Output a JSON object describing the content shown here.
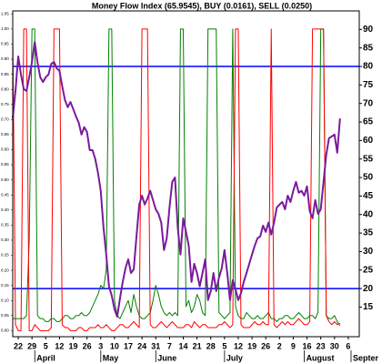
{
  "chart_data": {
    "type": "line",
    "title": "Money Flow Index (65.9545), BUY (0.0161), SELL (0.0250)",
    "x": [
      -2,
      -1,
      0,
      1,
      2,
      3,
      4,
      5,
      6,
      7,
      8,
      9,
      10,
      11,
      12,
      13,
      14,
      15,
      16,
      17,
      18,
      19,
      20,
      21,
      22,
      23,
      24,
      25,
      26,
      27,
      28,
      29,
      30,
      31,
      32,
      33,
      34,
      35,
      36,
      37,
      38,
      39,
      40,
      41,
      42,
      43,
      44,
      45,
      46,
      47,
      48,
      49,
      50,
      51,
      52,
      53,
      54,
      55,
      56,
      57,
      58,
      59,
      60,
      61,
      62,
      63,
      64,
      65,
      66,
      67,
      68,
      69,
      70,
      71,
      72,
      73,
      74,
      75,
      76,
      77,
      78,
      79,
      80,
      81,
      82,
      83,
      84,
      85,
      86,
      87,
      88,
      89,
      90,
      91,
      92,
      93,
      94,
      95,
      96,
      97,
      98,
      99,
      100,
      101,
      102,
      103,
      104,
      105,
      106,
      107,
      108,
      109,
      110,
      111,
      112,
      113,
      114,
      115,
      116,
      117
    ],
    "series": [
      {
        "name": "Money Flow Index",
        "color": "#7b1a9e",
        "axis": "y",
        "values": [
          66.0,
          73.4,
          82.7,
          77.8,
          73.9,
          73.4,
          77.1,
          81.2,
          86.6,
          81.2,
          77.1,
          75.8,
          77.1,
          77.8,
          80.7,
          81.2,
          79.5,
          78.8,
          74.6,
          70.9,
          69.0,
          70.4,
          68.5,
          66.5,
          64.8,
          61.6,
          63.6,
          62.3,
          57.4,
          57.4,
          55.0,
          51.3,
          46.4,
          36.5,
          29.2,
          20.6,
          18.1,
          14.4,
          12.4,
          17.4,
          21.8,
          25.5,
          27.9,
          24.2,
          25.2,
          34.1,
          42.7,
          45.1,
          42.7,
          44.4,
          46.4,
          43.9,
          41.4,
          40.2,
          37.8,
          30.4,
          33.6,
          41.9,
          48.8,
          50.0,
          36.5,
          29.2,
          39.0,
          35.3,
          31.6,
          21.8,
          26.7,
          24.2,
          20.6,
          24.2,
          27.9,
          16.9,
          19.3,
          24.2,
          19.3,
          23.0,
          25.5,
          30.4,
          24.2,
          16.9,
          22.3,
          19.8,
          16.9,
          18.8,
          21.8,
          24.2,
          26.7,
          29.2,
          31.6,
          33.6,
          34.1,
          37.0,
          35.3,
          37.8,
          34.6,
          37.8,
          41.9,
          42.7,
          43.4,
          41.4,
          45.1,
          43.4,
          46.4,
          48.8,
          45.9,
          46.4,
          45.1,
          47.6,
          40.9,
          39.0,
          43.9,
          40.2,
          41.4,
          48.8,
          56.2,
          60.6,
          61.1,
          61.6,
          56.7,
          65.9545
        ]
      },
      {
        "name": "BUY",
        "color": "#008000",
        "axis": "y2",
        "values": [
          0.04,
          0.04,
          0.04,
          0.04,
          0.04,
          0.05,
          0.3,
          1,
          1,
          0.05,
          0.04,
          0.04,
          0.03,
          0.03,
          0.04,
          0.04,
          0.03,
          0.03,
          0.04,
          0.05,
          0.05,
          0.04,
          0.04,
          0.05,
          0.05,
          0.06,
          0.05,
          0.05,
          0.06,
          0.08,
          0.1,
          0.12,
          0.15,
          0.14,
          0.2,
          1,
          1,
          0.1,
          0.05,
          0.04,
          0.06,
          0.08,
          0.1,
          0.06,
          0.12,
          0.08,
          0.05,
          0.04,
          0.04,
          0.05,
          0.06,
          0.1,
          0.15,
          0.12,
          0.08,
          0.06,
          0.05,
          0.06,
          0.05,
          0.06,
          0.05,
          1,
          1,
          0.08,
          0.1,
          0.06,
          0.08,
          0.12,
          0.1,
          0.06,
          0.05,
          1,
          1,
          1,
          1,
          0.06,
          0.05,
          0.04,
          0.05,
          0.06,
          1,
          0.08,
          0.05,
          0.04,
          0.04,
          0.06,
          0.05,
          0.04,
          0.04,
          0.05,
          0.04,
          0.04,
          0.05,
          0.06,
          0.04,
          0.04,
          0.03,
          0.04,
          0.04,
          0.05,
          0.05,
          0.04,
          0.04,
          0.05,
          0.06,
          0.05,
          0.04,
          0.04,
          0.05,
          0.05,
          0.04,
          0.06,
          1,
          1,
          0.05,
          0.04,
          0.04,
          0.05,
          0.03,
          0.0161
        ]
      },
      {
        "name": "SELL",
        "color": "#ff0000",
        "axis": "y2",
        "values": [
          1,
          0.02,
          0,
          0,
          1,
          1,
          0,
          0,
          0.02,
          0.01,
          0,
          0,
          0,
          0,
          0.01,
          1,
          1,
          1,
          0.02,
          0.01,
          0.01,
          0,
          0,
          0,
          0.01,
          0.01,
          0,
          0,
          0.01,
          0.01,
          0.01,
          0.02,
          0.01,
          0.01,
          0.02,
          0.01,
          0,
          0,
          0.01,
          0.02,
          0.02,
          0.01,
          0.01,
          0.02,
          0.03,
          0.02,
          0.01,
          1,
          1,
          1,
          0.02,
          0.01,
          0.01,
          0.02,
          0.03,
          0.02,
          0.01,
          0.02,
          0.03,
          0.02,
          0.01,
          0.01,
          0.01,
          0.02,
          0.02,
          0.01,
          0.03,
          0.02,
          0.01,
          0.02,
          0.02,
          0.01,
          0.01,
          0.01,
          0.01,
          0.02,
          0.02,
          0.03,
          0.02,
          0.01,
          0.02,
          1,
          1,
          0.02,
          0.01,
          0.01,
          0.01,
          0.02,
          0.03,
          0.02,
          0.02,
          0.03,
          0.02,
          0.02,
          1,
          0.02,
          0.01,
          0.02,
          0.03,
          0.02,
          0.03,
          0.02,
          0.02,
          0.03,
          0.04,
          0.03,
          0.02,
          0.02,
          0.03,
          1,
          1,
          1,
          1,
          1,
          0.05,
          0.03,
          0.02,
          0.03,
          0.02,
          0.025
        ]
      }
    ],
    "xlim": [
      -2,
      124
    ],
    "xticks": [
      {
        "value": 0,
        "label": "22"
      },
      {
        "value": 5,
        "label": "29"
      },
      {
        "value": 10,
        "label": "5"
      },
      {
        "value": 15,
        "label": "12"
      },
      {
        "value": 20,
        "label": "19"
      },
      {
        "value": 25,
        "label": "26"
      },
      {
        "value": 30,
        "label": "3"
      },
      {
        "value": 35,
        "label": "10"
      },
      {
        "value": 40,
        "label": "17"
      },
      {
        "value": 45,
        "label": "24"
      },
      {
        "value": 50,
        "label": "31"
      },
      {
        "value": 55,
        "label": "7"
      },
      {
        "value": 60,
        "label": "14"
      },
      {
        "value": 65,
        "label": "21"
      },
      {
        "value": 70,
        "label": "28"
      },
      {
        "value": 75,
        "label": "5"
      },
      {
        "value": 80,
        "label": "12"
      },
      {
        "value": 85,
        "label": "19"
      },
      {
        "value": 90,
        "label": "26"
      },
      {
        "value": 95,
        "label": "2"
      },
      {
        "value": 100,
        "label": "9"
      },
      {
        "value": 105,
        "label": "16"
      },
      {
        "value": 110,
        "label": "23"
      },
      {
        "value": 115,
        "label": "30"
      },
      {
        "value": 120,
        "label": "6"
      }
    ],
    "xmonth_labels": [
      {
        "value": 8,
        "label": "April"
      },
      {
        "value": 32,
        "label": "May"
      },
      {
        "value": 52,
        "label": "June"
      },
      {
        "value": 77,
        "label": "July"
      },
      {
        "value": 106,
        "label": "August"
      },
      {
        "value": 123,
        "label": "Septer"
      }
    ],
    "ylim": [
      7,
      95
    ],
    "yticks": [
      15,
      20,
      25,
      30,
      35,
      40,
      45,
      50,
      55,
      60,
      65,
      70,
      75,
      80,
      85,
      90
    ],
    "y2lim": [
      -0.02,
      1.06
    ],
    "y2ticks": [
      {
        "value": 0,
        "label": "0.00"
      },
      {
        "value": 0.05,
        "label": "0.05"
      },
      {
        "value": 0.1,
        "label": "0.10"
      },
      {
        "value": 0.15,
        "label": "0.15"
      },
      {
        "value": 0.2,
        "label": "0.20"
      },
      {
        "value": 0.25,
        "label": "0.25"
      },
      {
        "value": 0.3,
        "label": "0.30"
      },
      {
        "value": 0.35,
        "label": "0.35"
      },
      {
        "value": 0.4,
        "label": "0.40"
      },
      {
        "value": 0.45,
        "label": "0.45"
      },
      {
        "value": 0.5,
        "label": "0.50"
      },
      {
        "value": 0.55,
        "label": "0.55"
      },
      {
        "value": 0.6,
        "label": "0.60"
      },
      {
        "value": 0.65,
        "label": "0.65"
      },
      {
        "value": 0.7,
        "label": "0.70"
      },
      {
        "value": 0.75,
        "label": "0.75"
      },
      {
        "value": 0.8,
        "label": "0.80"
      },
      {
        "value": 0.85,
        "label": "0.85"
      },
      {
        "value": 0.9,
        "label": "0.90"
      },
      {
        "value": 0.95,
        "label": "0.95"
      },
      {
        "value": 1.0,
        "label": "1.00"
      },
      {
        "value": 1.05,
        "label": "1.05"
      }
    ],
    "hlines": [
      80,
      20
    ],
    "hline_color": "#0000ff",
    "grid": false
  }
}
